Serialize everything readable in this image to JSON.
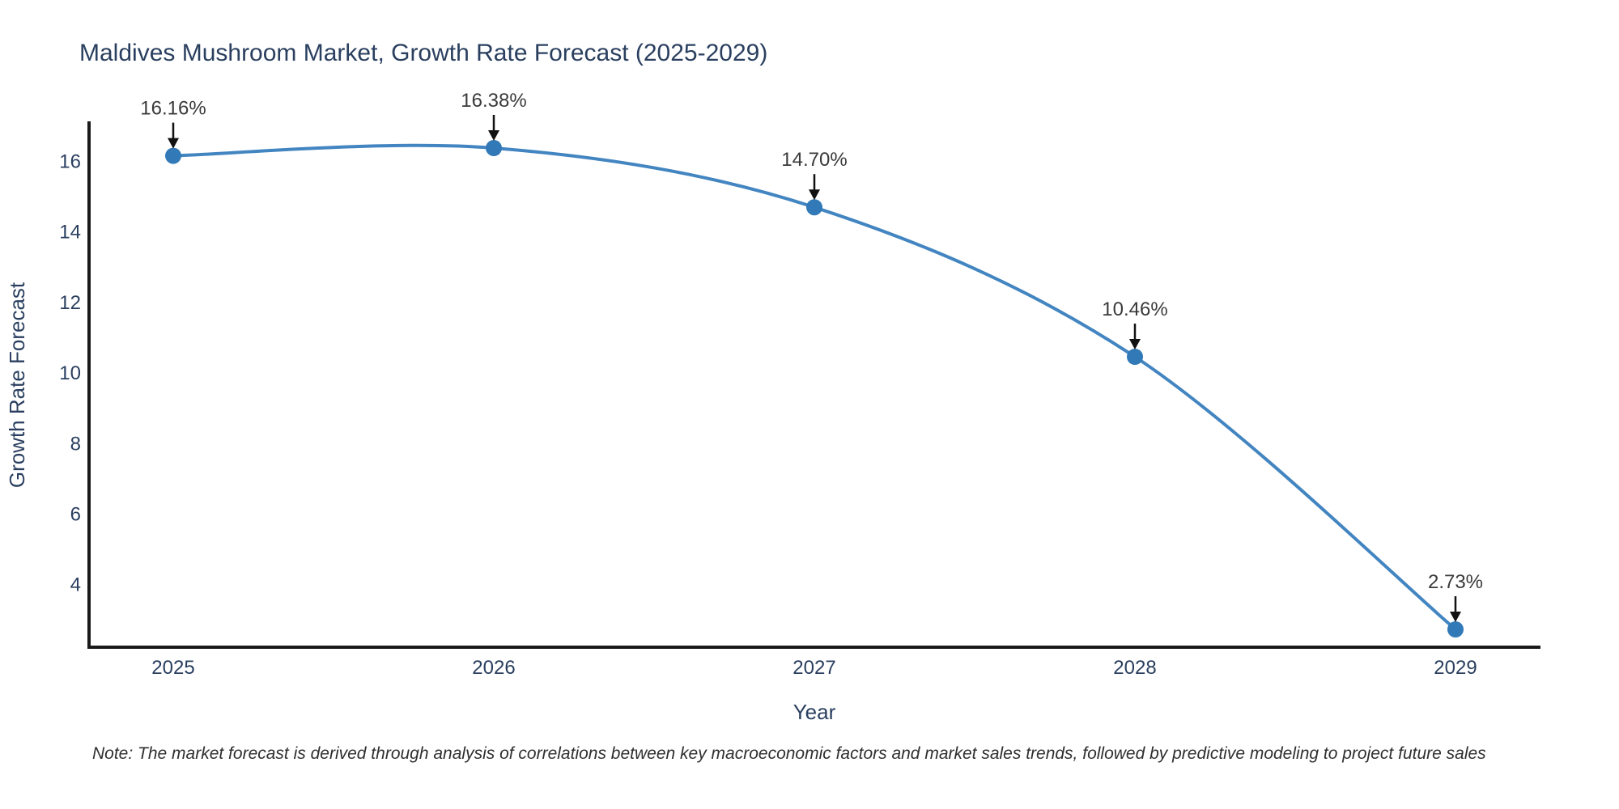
{
  "title": "Maldives Mushroom Market, Growth Rate Forecast (2025-2029)",
  "note": "Note: The market forecast is derived through analysis of correlations between key macroeconomic factors and market sales trends, followed by predictive modeling to project future sales",
  "chart_data": {
    "type": "line",
    "title": "Maldives Mushroom Market, Growth Rate Forecast (2025-2029)",
    "xlabel": "Year",
    "ylabel": "Growth Rate Forecast",
    "x": [
      2025,
      2026,
      2027,
      2028,
      2029
    ],
    "series": [
      {
        "name": "Growth Rate Forecast",
        "values": [
          16.16,
          16.38,
          14.7,
          10.46,
          2.73
        ]
      }
    ],
    "point_labels": [
      "16.16%",
      "16.38%",
      "14.70%",
      "10.46%",
      "2.73%"
    ],
    "yticks": [
      4,
      6,
      8,
      10,
      12,
      14,
      16
    ],
    "ylim": [
      2.2,
      17.1
    ],
    "grid": false,
    "legend": "none",
    "marker": "circle",
    "line_smoothing": "spline",
    "annotation_arrows": true,
    "colors": {
      "line": "#4285c1",
      "marker": "#3279b7",
      "axis": "#1a1a1a",
      "text": "#2a3f5f",
      "annotation": "#3a3a3a",
      "arrow": "#111111"
    }
  }
}
